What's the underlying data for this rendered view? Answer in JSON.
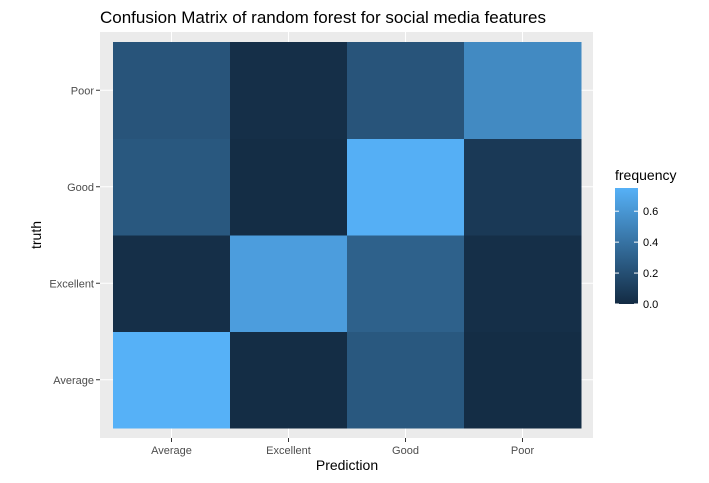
{
  "chart_data": {
    "type": "heatmap",
    "title": "Confusion Matrix of  random forest for social media features",
    "xlabel": "Prediction",
    "ylabel": "truth",
    "x_categories": [
      "Average",
      "Excellent",
      "Good",
      "Poor"
    ],
    "y_categories": [
      "Average",
      "Excellent",
      "Good",
      "Poor"
    ],
    "cells": [
      {
        "x": "Average",
        "y": "Average",
        "value": 0.75
      },
      {
        "x": "Excellent",
        "y": "Average",
        "value": 0.01
      },
      {
        "x": "Good",
        "y": "Average",
        "value": 0.25
      },
      {
        "x": "Poor",
        "y": "Average",
        "value": 0.01
      },
      {
        "x": "Average",
        "y": "Excellent",
        "value": 0.02
      },
      {
        "x": "Excellent",
        "y": "Excellent",
        "value": 0.64
      },
      {
        "x": "Good",
        "y": "Excellent",
        "value": 0.3
      },
      {
        "x": "Poor",
        "y": "Excellent",
        "value": 0.02
      },
      {
        "x": "Average",
        "y": "Good",
        "value": 0.25
      },
      {
        "x": "Excellent",
        "y": "Good",
        "value": 0.01
      },
      {
        "x": "Good",
        "y": "Good",
        "value": 0.74
      },
      {
        "x": "Poor",
        "y": "Good",
        "value": 0.08
      },
      {
        "x": "Average",
        "y": "Poor",
        "value": 0.23
      },
      {
        "x": "Excellent",
        "y": "Poor",
        "value": 0.02
      },
      {
        "x": "Good",
        "y": "Poor",
        "value": 0.23
      },
      {
        "x": "Poor",
        "y": "Poor",
        "value": 0.53
      }
    ],
    "legend": {
      "title": "frequency",
      "ticks": [
        "0.0",
        "0.2",
        "0.4",
        "0.6"
      ],
      "tick_values": [
        0.0,
        0.2,
        0.4,
        0.6
      ],
      "range": [
        0.0,
        0.75
      ],
      "placement": "right"
    },
    "colors": {
      "low": "#132B43",
      "high": "#56B1F7",
      "panel_background": "#EBEBEB",
      "grid": "#FFFFFF"
    }
  }
}
